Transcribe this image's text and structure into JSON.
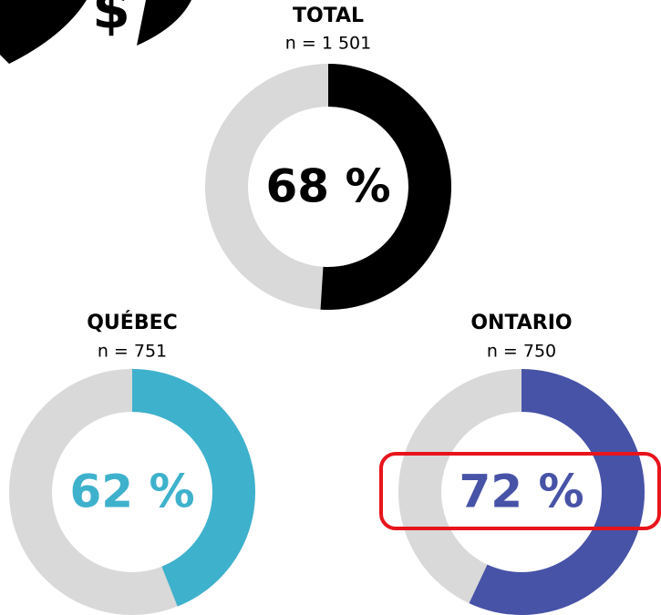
{
  "icon_text": "$",
  "donuts": [
    {
      "title": "TOTAL",
      "n": "n = 1 501",
      "label": "68 %",
      "arc": 51,
      "color": "#000000"
    },
    {
      "title": "QUÉBEC",
      "n": "n = 751",
      "label": "62 %",
      "arc": 44,
      "color": "#3eb1cc"
    },
    {
      "title": "ONTARIO",
      "n": "n = 750",
      "label": "72 %",
      "arc": 57,
      "color": "#4753a7"
    }
  ]
}
